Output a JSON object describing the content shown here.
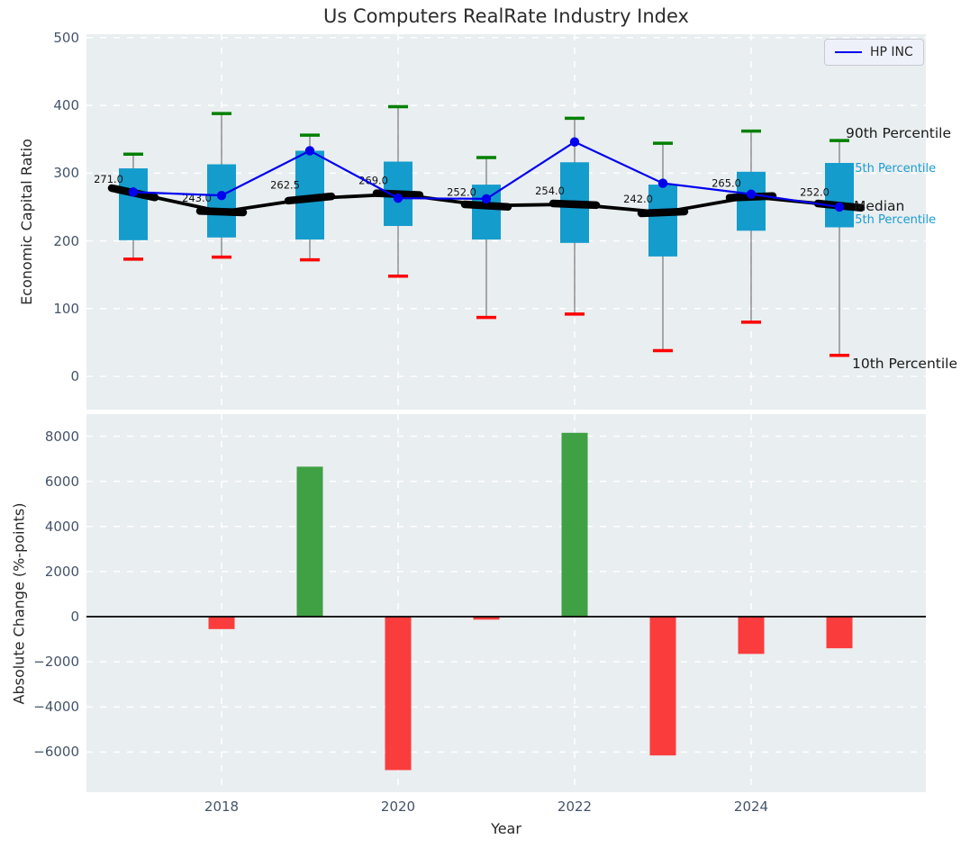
{
  "title": "Us Computers RealRate Industry Index",
  "legend": {
    "label": "HP INC"
  },
  "axes": {
    "top": {
      "ylabel": "Economic Capital Ratio",
      "yticks": [
        500,
        400,
        300,
        200,
        100,
        0
      ]
    },
    "bottom": {
      "ylabel": "Absolute Change (%-points)",
      "yticks": [
        8000,
        6000,
        4000,
        2000,
        0,
        -2000,
        -4000,
        -6000
      ],
      "xlabel": "Year",
      "xticks": [
        2018,
        2020,
        2022,
        2024
      ]
    }
  },
  "percentile_labels": [
    {
      "key": "p90",
      "label": "90th Percentile",
      "style": "large"
    },
    {
      "key": "p75",
      "label": "75th Percentile",
      "style": "small"
    },
    {
      "key": "median",
      "label": "Median",
      "style": "large"
    },
    {
      "key": "p25",
      "label": "25th Percentile",
      "style": "small"
    },
    {
      "key": "p10",
      "label": "10th Percentile",
      "style": "large"
    }
  ],
  "chart_data": [
    {
      "type": "boxplot+line",
      "panel": "top",
      "title": "Us Computers RealRate Industry Index",
      "ylabel": "Economic Capital Ratio",
      "x": [
        2017,
        2018,
        2019,
        2020,
        2021,
        2022,
        2023,
        2024,
        2025
      ],
      "ylim": [
        -49,
        505
      ],
      "series": [
        {
          "name": "90th Percentile",
          "values": [
            328,
            388,
            356,
            398,
            323,
            381,
            344,
            362,
            348
          ]
        },
        {
          "name": "75th Percentile",
          "values": [
            307,
            313,
            333,
            317,
            283,
            316,
            283,
            302,
            315
          ]
        },
        {
          "name": "Median",
          "values": [
            271,
            243,
            262.5,
            269,
            252,
            254,
            242,
            265,
            252
          ]
        },
        {
          "name": "25th Percentile",
          "values": [
            201,
            205,
            202,
            222,
            202,
            197,
            177,
            215,
            220
          ]
        },
        {
          "name": "10th Percentile",
          "values": [
            173,
            176,
            172,
            148,
            87,
            92,
            38,
            80,
            31
          ]
        },
        {
          "name": "HP INC",
          "values": [
            272,
            267,
            333,
            263,
            262,
            346,
            285,
            269,
            250
          ]
        }
      ],
      "median_labels": [
        "271.0",
        "243.0",
        "262.5",
        "269.0",
        "252.0",
        "254.0",
        "242.0",
        "265.0",
        "252.0"
      ]
    },
    {
      "type": "bar",
      "panel": "bottom",
      "ylabel": "Absolute Change (%-points)",
      "xlabel": "Year",
      "x": [
        2018,
        2019,
        2020,
        2021,
        2022,
        2023,
        2024,
        2025
      ],
      "values": [
        -550,
        6650,
        -6800,
        -130,
        8150,
        -6150,
        -1650,
        -1400
      ],
      "ylim": [
        -7780,
        8980
      ]
    }
  ],
  "colors": {
    "box": "#149ccd",
    "hp_line": "#0000ee",
    "median_line": "#000000",
    "cap_top": "#008000",
    "cap_bottom": "#fe0000",
    "whisker": "#808080",
    "bar_positive": "#3fa044",
    "bar_negative": "#fb3c3c",
    "panel_bg": "#e9eef0",
    "grid": "#ffffff",
    "tick_text": "#44546a",
    "cyan_text": "#1b9cd1",
    "zero_line": "#000000"
  }
}
